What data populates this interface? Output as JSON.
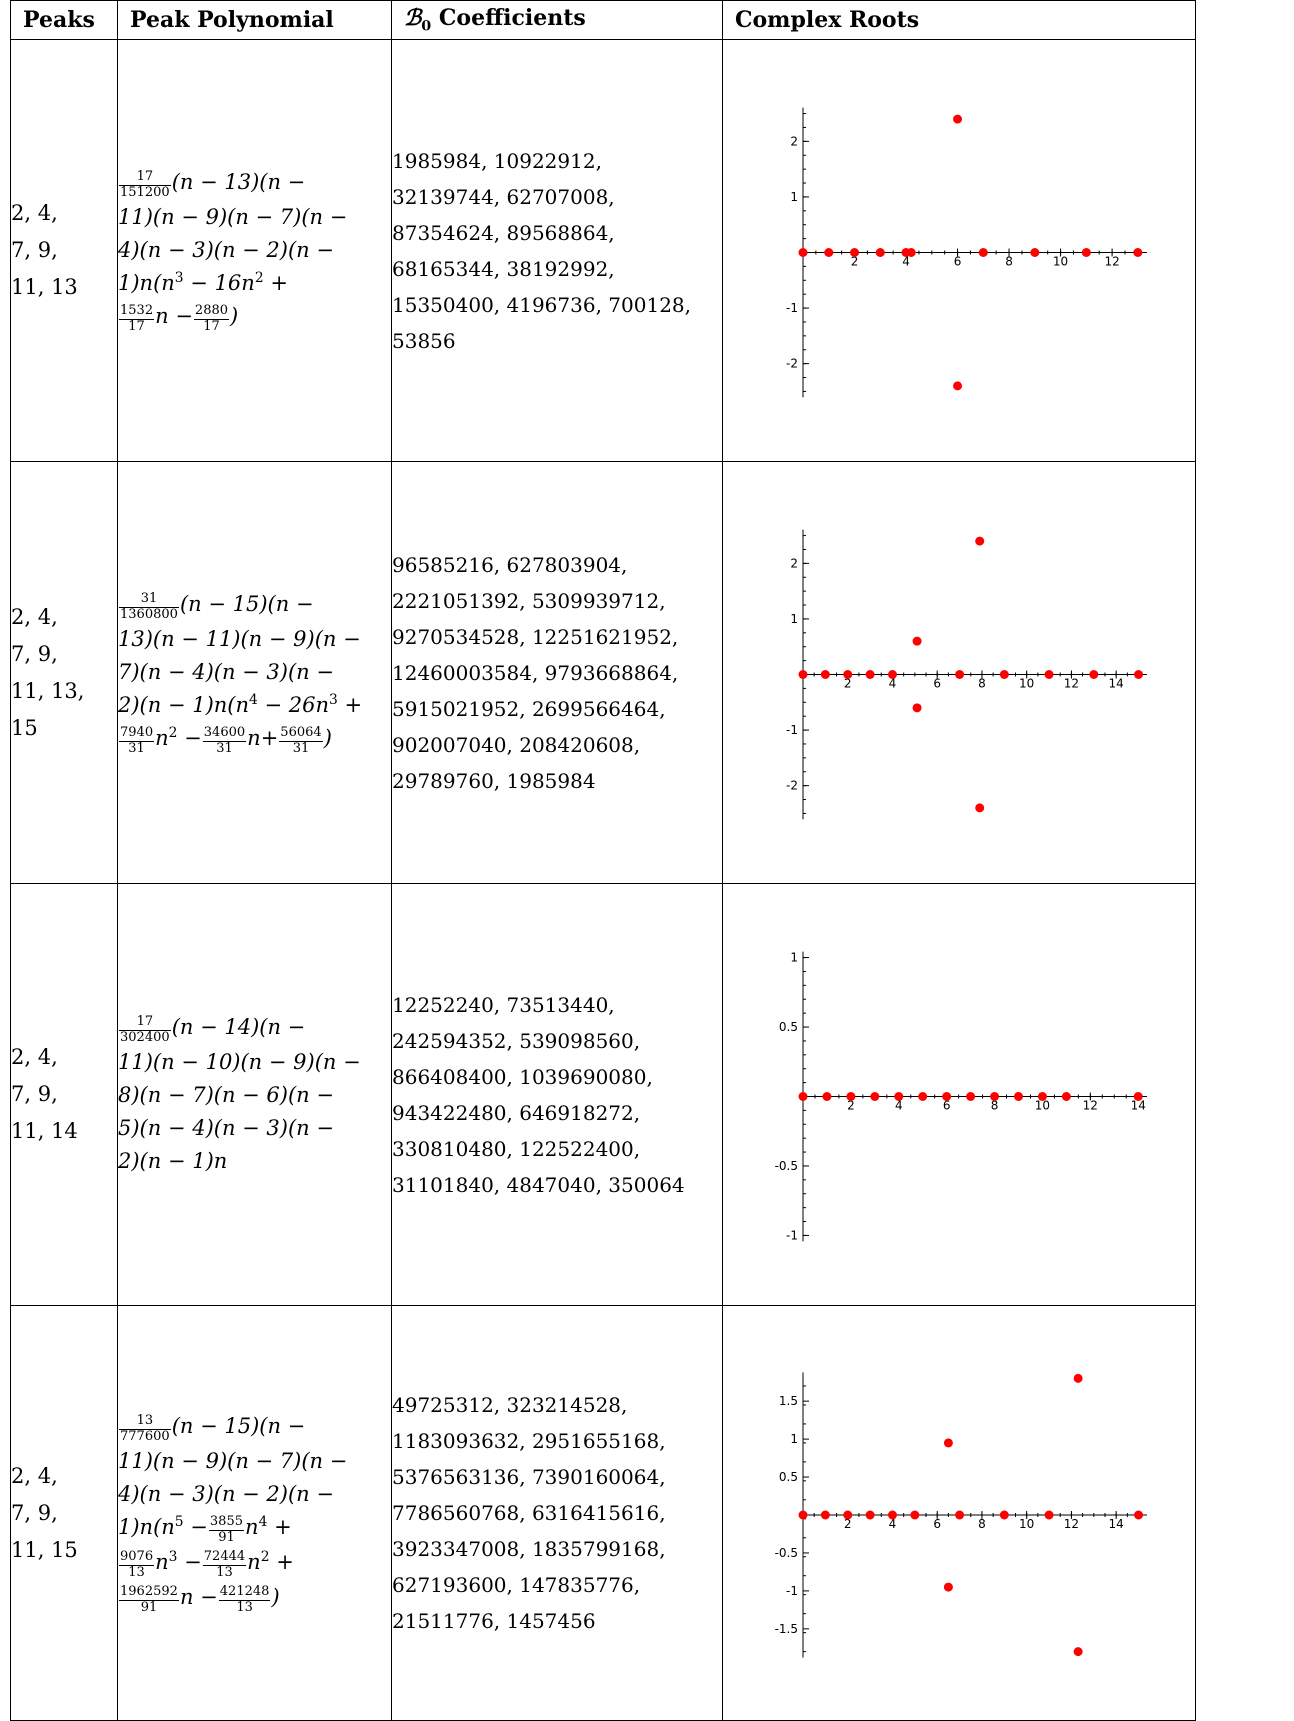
{
  "headers": [
    "Peaks",
    "Peak Polynomial",
    "Coefficients",
    "Complex Roots"
  ],
  "header_symbol": "ℬ",
  "header_symbol_sub": "0",
  "rows": [
    {
      "peaks_lines": [
        "2, 4,",
        "7, 9,",
        "11, 13"
      ],
      "coef_lines": [
        "1985984, 10922912,",
        "32139744, 62707008,",
        "87354624, 89568864,",
        "68165344, 38192992,",
        "15350400, 4196736, 700128,",
        "53856"
      ]
    },
    {
      "peaks_lines": [
        "2, 4,",
        "7, 9,",
        "11, 13,",
        "15"
      ],
      "coef_lines": [
        "96585216, 627803904,",
        "2221051392, 5309939712,",
        "9270534528, 12251621952,",
        "12460003584, 9793668864,",
        "5915021952, 2699566464,",
        "902007040, 208420608,",
        "29789760, 1985984"
      ]
    },
    {
      "peaks_lines": [
        "2, 4,",
        "7, 9,",
        "11, 14"
      ],
      "coef_lines": [
        "12252240, 73513440,",
        "242594352, 539098560,",
        "866408400, 1039690080,",
        "943422480, 646918272,",
        "330810480, 122522400,",
        "31101840, 4847040, 350064"
      ]
    },
    {
      "peaks_lines": [
        "2, 4,",
        "7, 9,",
        "11, 15"
      ],
      "coef_lines": [
        "49725312, 323214528,",
        "1183093632, 2951655168,",
        "5376563136, 7390160064,",
        "7786560768, 6316415616,",
        "3923347008, 1835799168,",
        "627193600, 147835776,",
        "21511776, 1457456"
      ]
    }
  ],
  "poly": {
    "r1": {
      "frac": [
        "17",
        "151200"
      ],
      "l1": "(n − 13)(n −",
      "l2": "11)(n − 9)(n − 7)(n −",
      "l3": "4)(n − 3)(n − 2)(n −",
      "l4a": "1)n(n",
      "l4b": " − 16n",
      "l4c": " +",
      "l5a": "n −",
      "l5b": ")",
      "f2": [
        "1532",
        "17"
      ],
      "f3": [
        "2880",
        "17"
      ]
    },
    "r2": {
      "frac": [
        "31",
        "1360800"
      ],
      "l1": "(n − 15)(n −",
      "l2": "13)(n − 11)(n − 9)(n −",
      "l3": "7)(n − 4)(n − 3)(n −",
      "l4a": "2)(n − 1)n(n",
      "l4b": " − 26n",
      "l4c": " +",
      "l5a": "n",
      "l5b": " −",
      "l5c": "n+",
      "l5d": ")",
      "f2": [
        "7940",
        "31"
      ],
      "f3": [
        "34600",
        "31"
      ],
      "f4": [
        "56064",
        "31"
      ]
    },
    "r3": {
      "frac": [
        "17",
        "302400"
      ],
      "l1": "(n − 14)(n −",
      "l2": "11)(n − 10)(n − 9)(n −",
      "l3": "8)(n − 7)(n − 6)(n −",
      "l4": "5)(n − 4)(n − 3)(n −",
      "l5": "2)(n − 1)n"
    },
    "r4": {
      "frac": [
        "13",
        "777600"
      ],
      "l1": "(n − 15)(n −",
      "l2": "11)(n − 9)(n − 7)(n −",
      "l3": "4)(n − 3)(n − 2)(n −",
      "l4a": "1)n(n",
      "l4b": " −",
      "l4c": "n",
      "l4d": " +",
      "l5a": "n",
      "l5b": " −",
      "l5c": "n",
      "l5d": " +",
      "l6a": "n −",
      "l6b": ")",
      "f2": [
        "3855",
        "91"
      ],
      "f3": [
        "9076",
        "13"
      ],
      "f4": [
        "72444",
        "13"
      ],
      "f5": [
        "1962592",
        "91"
      ],
      "f6": [
        "421248",
        "13"
      ]
    },
    "exp": {
      "two": "2",
      "three": "3",
      "four": "4",
      "five": "5"
    }
  },
  "chart_data": [
    {
      "type": "scatter",
      "title": "",
      "xlim": [
        0,
        13.2
      ],
      "ylim": [
        -2.5,
        2.5
      ],
      "xticks": [
        2,
        4,
        6,
        8,
        10,
        12
      ],
      "yticks": [
        2,
        1,
        -1,
        -2
      ],
      "points": [
        [
          0,
          0
        ],
        [
          1,
          0
        ],
        [
          2,
          0
        ],
        [
          3,
          0
        ],
        [
          4,
          0
        ],
        [
          4.2,
          0
        ],
        [
          6,
          2.4
        ],
        [
          6,
          -2.4
        ],
        [
          7,
          0
        ],
        [
          9,
          0
        ],
        [
          11,
          0
        ],
        [
          13,
          0
        ]
      ],
      "color": "#ff0000"
    },
    {
      "type": "scatter",
      "title": "",
      "xlim": [
        0,
        15.2
      ],
      "ylim": [
        -2.5,
        2.5
      ],
      "xticks": [
        2,
        4,
        6,
        8,
        10,
        12,
        14
      ],
      "yticks": [
        2,
        1,
        -1,
        -2
      ],
      "points": [
        [
          0,
          0
        ],
        [
          1,
          0
        ],
        [
          2,
          0
        ],
        [
          3,
          0
        ],
        [
          4,
          0
        ],
        [
          5.1,
          0.6
        ],
        [
          5.1,
          -0.6
        ],
        [
          7,
          0
        ],
        [
          7.9,
          2.4
        ],
        [
          7.9,
          -2.4
        ],
        [
          9,
          0
        ],
        [
          11,
          0
        ],
        [
          13,
          0
        ],
        [
          15,
          0
        ]
      ],
      "color": "#ff0000"
    },
    {
      "type": "scatter",
      "title": "",
      "xlim": [
        0,
        14.2
      ],
      "ylim": [
        -1,
        1
      ],
      "xticks": [
        2,
        4,
        6,
        8,
        10,
        12,
        14
      ],
      "yticks": [
        1,
        0.5,
        -0.5,
        -1
      ],
      "points": [
        [
          0,
          0
        ],
        [
          1,
          0
        ],
        [
          2,
          0
        ],
        [
          3,
          0
        ],
        [
          4,
          0
        ],
        [
          5,
          0
        ],
        [
          6,
          0
        ],
        [
          7,
          0
        ],
        [
          8,
          0
        ],
        [
          9,
          0
        ],
        [
          10,
          0
        ],
        [
          11,
          0
        ],
        [
          14,
          0
        ]
      ],
      "color": "#ff0000"
    },
    {
      "type": "scatter",
      "title": "",
      "xlim": [
        0,
        15.2
      ],
      "ylim": [
        -1.8,
        1.8
      ],
      "xticks": [
        2,
        4,
        6,
        8,
        10,
        12,
        14
      ],
      "yticks": [
        1.5,
        1,
        0.5,
        -0.5,
        -1,
        -1.5
      ],
      "points": [
        [
          0,
          0
        ],
        [
          1,
          0
        ],
        [
          2,
          0
        ],
        [
          3,
          0
        ],
        [
          4,
          0
        ],
        [
          5,
          0
        ],
        [
          6.5,
          0.95
        ],
        [
          6.5,
          -0.95
        ],
        [
          7,
          0
        ],
        [
          9,
          0
        ],
        [
          11,
          0
        ],
        [
          12.3,
          1.8
        ],
        [
          12.3,
          -1.8
        ],
        [
          15,
          0
        ]
      ],
      "color": "#ff0000"
    }
  ]
}
